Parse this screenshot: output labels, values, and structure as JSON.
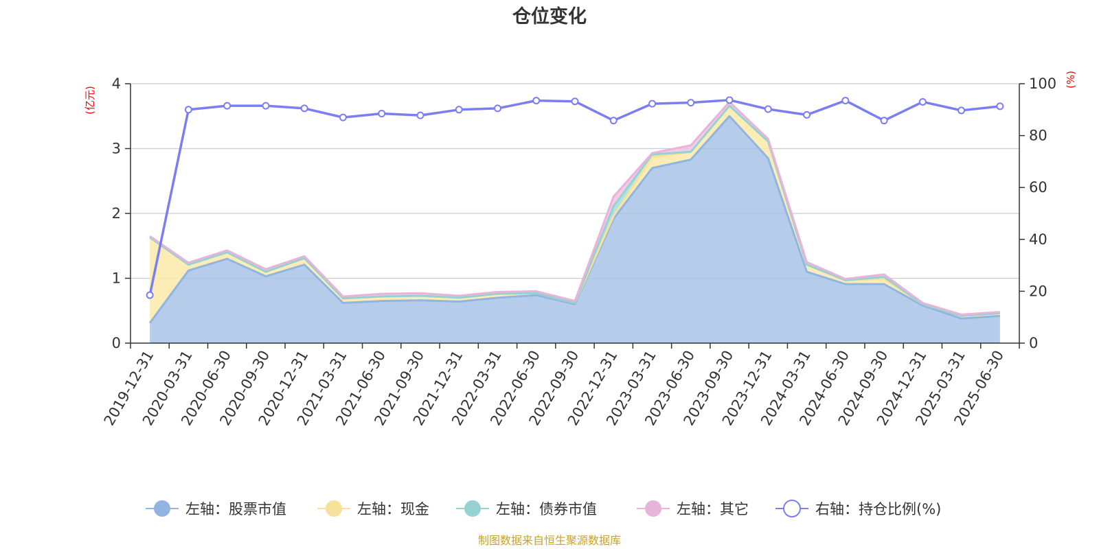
{
  "chart_data": {
    "type": "area",
    "title": "仓位变化",
    "x": [
      "2019-12-31",
      "2020-03-31",
      "2020-06-30",
      "2020-09-30",
      "2020-12-31",
      "2021-03-31",
      "2021-06-30",
      "2021-09-30",
      "2021-12-31",
      "2022-03-31",
      "2022-06-30",
      "2022-09-30",
      "2022-12-31",
      "2023-03-31",
      "2023-06-30",
      "2023-09-30",
      "2023-12-31",
      "2024-03-31",
      "2024-06-30",
      "2024-09-30",
      "2024-12-31",
      "2025-03-31",
      "2025-06-30"
    ],
    "left_axis": {
      "unit": "(亿元)",
      "ylim": [
        0,
        4
      ],
      "ticks": [
        "0",
        "1",
        "2",
        "3",
        "4"
      ]
    },
    "right_axis": {
      "unit": "(%)",
      "ylim": [
        0,
        100
      ],
      "ticks": [
        "0",
        "20",
        "40",
        "60",
        "80",
        "100"
      ]
    },
    "series": [
      {
        "name": "左轴：股票市值",
        "axis": "left",
        "kind": "stacked-area",
        "color": "#a8c4e6",
        "line_color": "#92b4e0",
        "values": [
          0.31,
          1.12,
          1.3,
          1.03,
          1.21,
          0.62,
          0.65,
          0.66,
          0.64,
          0.7,
          0.74,
          0.6,
          1.92,
          2.7,
          2.83,
          3.5,
          2.85,
          1.1,
          0.91,
          0.91,
          0.58,
          0.38,
          0.42
        ]
      },
      {
        "name": "左轴：现金",
        "axis": "left",
        "kind": "stacked-area",
        "color": "#fbe9a8",
        "line_color": "#f8e29a",
        "values": [
          1.32,
          0.09,
          0.1,
          0.07,
          0.1,
          0.07,
          0.07,
          0.07,
          0.06,
          0.06,
          0.03,
          0.02,
          0.04,
          0.17,
          0.12,
          0.16,
          0.26,
          0.11,
          0.06,
          0.08,
          0.02,
          0.04,
          0.04
        ]
      },
      {
        "name": "左轴：债券市值",
        "axis": "left",
        "kind": "stacked-area",
        "color": "#a6dcdc",
        "line_color": "#96d2d2",
        "values": [
          0,
          0,
          0,
          0,
          0,
          0,
          0,
          0,
          0,
          0,
          0,
          0,
          0.15,
          0.04,
          0,
          0,
          0,
          0,
          0,
          0.03,
          0,
          0,
          0
        ]
      },
      {
        "name": "左轴：其它",
        "axis": "left",
        "kind": "stacked-area",
        "color": "#f2c2e2",
        "line_color": "#e8b4da",
        "values": [
          0.02,
          0.03,
          0.03,
          0.04,
          0.03,
          0.03,
          0.04,
          0.04,
          0.03,
          0.03,
          0.03,
          0.03,
          0.15,
          0.02,
          0.1,
          0.06,
          0.04,
          0.04,
          0.02,
          0.04,
          0.02,
          0.02,
          0.02
        ]
      },
      {
        "name": "右轴：持仓比例(%)",
        "axis": "right",
        "kind": "line",
        "color": "#7b7ef2",
        "values": [
          18.5,
          90.0,
          91.5,
          91.5,
          90.5,
          87.0,
          88.5,
          87.8,
          90.0,
          90.5,
          93.5,
          93.2,
          85.8,
          92.3,
          92.7,
          93.7,
          90.2,
          88.0,
          93.5,
          85.8,
          93.0,
          89.7,
          91.3
        ]
      }
    ],
    "legend_position": "bottom",
    "grid": true
  },
  "source_note": "制图数据来自恒生聚源数据库",
  "colors": {
    "source_text": "#c9a227",
    "axis_unit": "#ff0000",
    "grid": "#cccccc",
    "axis": "#333333"
  }
}
